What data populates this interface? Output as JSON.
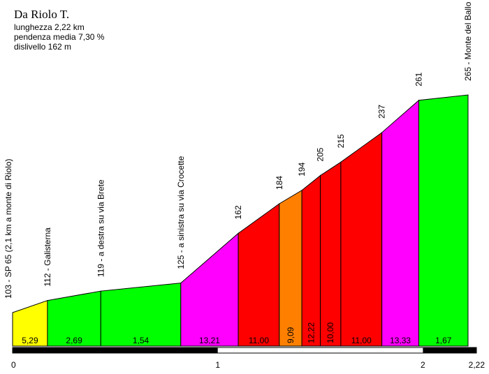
{
  "chart_data": {
    "type": "area",
    "title": "Da Riolo T.",
    "info_lines": [
      "lunghezza 2,22 km",
      "pendenza media 7,30 %",
      "dislivello 162 m"
    ],
    "x_ticks": [
      "0",
      "1",
      "2",
      "2,22"
    ],
    "xlim": [
      0,
      2.22
    ],
    "profile": [
      {
        "km": 0.0,
        "elev": 103
      },
      {
        "km": 0.17,
        "elev": 112
      },
      {
        "km": 0.43,
        "elev": 119
      },
      {
        "km": 0.82,
        "elev": 125
      },
      {
        "km": 1.1,
        "elev": 162
      },
      {
        "km": 1.3,
        "elev": 184
      },
      {
        "km": 1.41,
        "elev": 194
      },
      {
        "km": 1.5,
        "elev": 205
      },
      {
        "km": 1.6,
        "elev": 215
      },
      {
        "km": 1.8,
        "elev": 237
      },
      {
        "km": 1.98,
        "elev": 261
      },
      {
        "km": 2.22,
        "elev": 265
      }
    ],
    "segments": [
      {
        "grade": "5,29",
        "color": "#ffff00"
      },
      {
        "grade": "2,69",
        "color": "#00ff00"
      },
      {
        "grade": "1,54",
        "color": "#00ff00"
      },
      {
        "grade": "13,21",
        "color": "#ff00ff"
      },
      {
        "grade": "11,00",
        "color": "#ff0000"
      },
      {
        "grade": "9,09",
        "color": "#ff8000"
      },
      {
        "grade": "12,22",
        "color": "#ff0000"
      },
      {
        "grade": "10,00",
        "color": "#ff0000"
      },
      {
        "grade": "11,00",
        "color": "#ff0000"
      },
      {
        "grade": "13,33",
        "color": "#ff00ff"
      },
      {
        "grade": "1,67",
        "color": "#00ff00"
      }
    ],
    "point_labels": [
      "103 - SP 65 (2,1 km a monte di Riolo)",
      "112 - Galisterna",
      "119 - a destra su via Brete",
      "125 - a sinistra su via Crocette",
      "162",
      "184",
      "194",
      "205",
      "215",
      "237",
      "261",
      "265 - Monte del Ballo"
    ]
  }
}
